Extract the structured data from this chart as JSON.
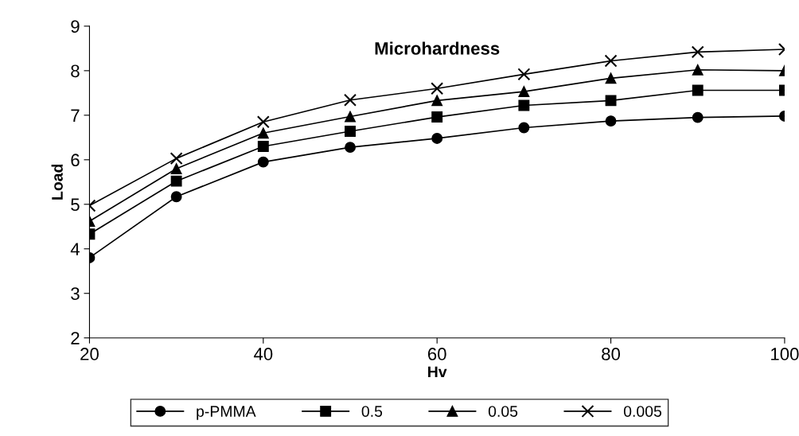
{
  "chart_data": {
    "type": "line",
    "title": "Microhardness",
    "xlabel": "Hv",
    "ylabel": "Load",
    "x": [
      20,
      30,
      40,
      50,
      60,
      70,
      80,
      90,
      100
    ],
    "series": [
      {
        "name": "p-PMMA",
        "color": "#000000",
        "marker": "circle",
        "values": [
          3.8,
          5.17,
          5.95,
          6.28,
          6.48,
          6.72,
          6.87,
          6.95,
          6.98
        ]
      },
      {
        "name": "0.5",
        "color": "#000000",
        "marker": "square",
        "values": [
          4.33,
          5.52,
          6.3,
          6.64,
          6.96,
          7.22,
          7.33,
          7.56,
          7.56
        ]
      },
      {
        "name": "0.05",
        "color": "#000000",
        "marker": "triangle",
        "values": [
          4.62,
          5.8,
          6.6,
          6.97,
          7.33,
          7.53,
          7.83,
          8.02,
          8.0
        ]
      },
      {
        "name": "0.005",
        "color": "#000000",
        "marker": "cross",
        "values": [
          4.97,
          6.03,
          6.85,
          7.34,
          7.6,
          7.92,
          8.22,
          8.42,
          8.48
        ]
      }
    ],
    "xlim": [
      20,
      100
    ],
    "xticks": [
      20,
      40,
      60,
      80,
      100
    ],
    "ylim": [
      2,
      9
    ],
    "yticks": [
      2,
      3,
      4,
      5,
      6,
      7,
      8,
      9
    ],
    "grid": false,
    "legend": "bottom",
    "line_style": "solid"
  }
}
